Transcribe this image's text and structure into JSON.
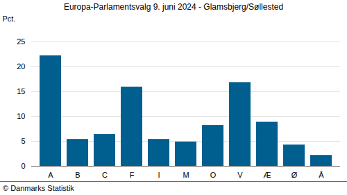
{
  "chart_data": {
    "type": "bar",
    "title": "Europa-Parlamentsvalg 9. juni 2024 - Glamsbjerg/Søllested",
    "y_label": "Pct.",
    "source": "© Danmarks Statistik",
    "categories": [
      "A",
      "B",
      "C",
      "F",
      "I",
      "M",
      "O",
      "V",
      "Æ",
      "Ø",
      "Å"
    ],
    "values": [
      22.2,
      5.4,
      6.4,
      15.9,
      5.4,
      4.9,
      8.2,
      16.8,
      8.9,
      4.3,
      2.2
    ],
    "color": "#005f8f",
    "ylim": [
      0,
      25
    ],
    "yticks": [
      0,
      5,
      10,
      15,
      20,
      25
    ],
    "grid": true
  }
}
